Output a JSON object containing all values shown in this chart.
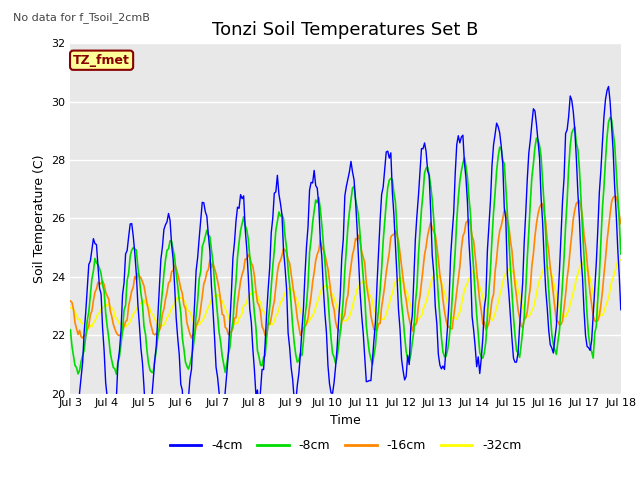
{
  "title": "Tonzi Soil Temperatures Set B",
  "xlabel": "Time",
  "ylabel": "Soil Temperature (C)",
  "ylim": [
    20,
    32
  ],
  "colors": {
    "4cm": "#0000ff",
    "8cm": "#00dd00",
    "16cm": "#ff8800",
    "32cm": "#ffff00"
  },
  "legend_labels": [
    "-4cm",
    "-8cm",
    "-16cm",
    "-32cm"
  ],
  "note_text": "No data for f_Tsoil_2cmB",
  "label_text": "TZ_fmet",
  "label_bg": "#ffff99",
  "label_fg": "#880000",
  "bg_color": "#e8e8e8",
  "plot_bg": "#e8e8e8",
  "title_fontsize": 13,
  "axis_fontsize": 9,
  "tick_fontsize": 8,
  "note_fontsize": 8,
  "x_tick_labels": [
    "Jul 3",
    "Jul 4",
    "Jul 5",
    "Jul 6",
    "Jul 7",
    "Jul 8",
    "Jul 9",
    "Jul 10",
    "Jul 11",
    "Jul 12",
    "Jul 13",
    "Jul 14",
    "Jul 15",
    "Jul 16",
    "Jul 17",
    "Jul 18"
  ]
}
